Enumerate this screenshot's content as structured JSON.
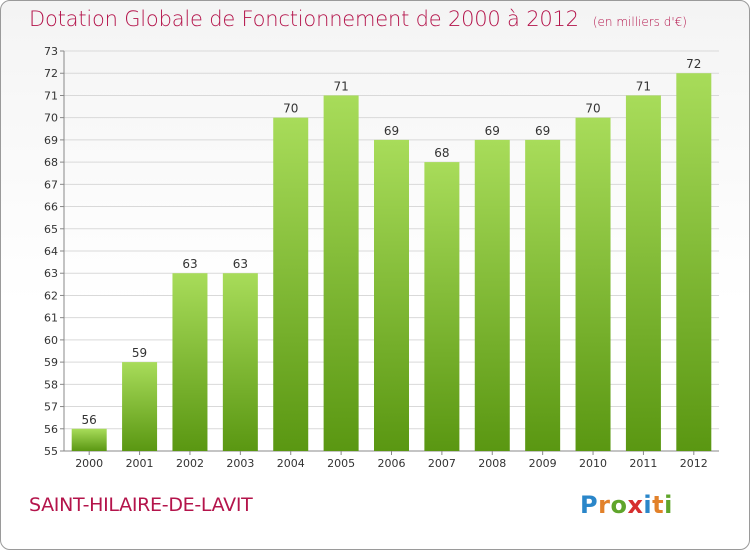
{
  "title": "Dotation Globale de Fonctionnement de 2000 à 2012",
  "subtitle": "(en milliers d'€)",
  "commune": "SAINT-HILAIRE-DE-LAVIT",
  "logo": {
    "letters": [
      "P",
      "r",
      "o",
      "x",
      "i",
      "t",
      "i"
    ],
    "colors": [
      "#2a86c9",
      "#e2812a",
      "#5fa52b",
      "#d62e2e",
      "#2a86c9",
      "#e2812a",
      "#5fa52b"
    ]
  },
  "colors": {
    "bar_light": "#a8dc5a",
    "bar_dark": "#5a9712",
    "title": "#b4144b",
    "grid": "#d9d9d9"
  },
  "chart_data": {
    "type": "bar",
    "categories": [
      "2000",
      "2001",
      "2002",
      "2003",
      "2004",
      "2005",
      "2006",
      "2007",
      "2008",
      "2009",
      "2010",
      "2011",
      "2012"
    ],
    "values": [
      56,
      59,
      63,
      63,
      70,
      71,
      69,
      68,
      69,
      69,
      70,
      71,
      72
    ],
    "ylim": [
      55,
      73
    ],
    "yticks": [
      55,
      56,
      57,
      58,
      59,
      60,
      61,
      62,
      63,
      64,
      65,
      66,
      67,
      68,
      69,
      70,
      71,
      72,
      73
    ],
    "grid": true,
    "data_labels": true
  }
}
